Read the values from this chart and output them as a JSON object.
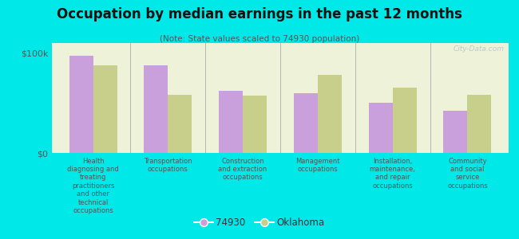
{
  "title": "Occupation by median earnings in the past 12 months",
  "subtitle": "(Note: State values scaled to 74930 population)",
  "background_color": "#00e8e8",
  "plot_bg_color": "#eef2d8",
  "categories": [
    "Health\ndiagnosing and\ntreating\npractitioners\nand other\ntechnical\noccupations",
    "Transportation\noccupations",
    "Construction\nand extraction\noccupations",
    "Management\noccupations",
    "Installation,\nmaintenance,\nand repair\noccupations",
    "Community\nand social\nservice\noccupations"
  ],
  "values_74930": [
    97000,
    88000,
    62000,
    60000,
    50000,
    42000
  ],
  "values_oklahoma": [
    88000,
    58000,
    57000,
    78000,
    65000,
    58000
  ],
  "color_74930": "#c9a0dc",
  "color_oklahoma": "#c8cf8a",
  "ylim": [
    0,
    110000
  ],
  "ytick_labels": [
    "$0",
    "$100k"
  ],
  "ytick_values": [
    0,
    100000
  ],
  "legend_label_74930": "74930",
  "legend_label_oklahoma": "Oklahoma",
  "watermark": "City-Data.com"
}
